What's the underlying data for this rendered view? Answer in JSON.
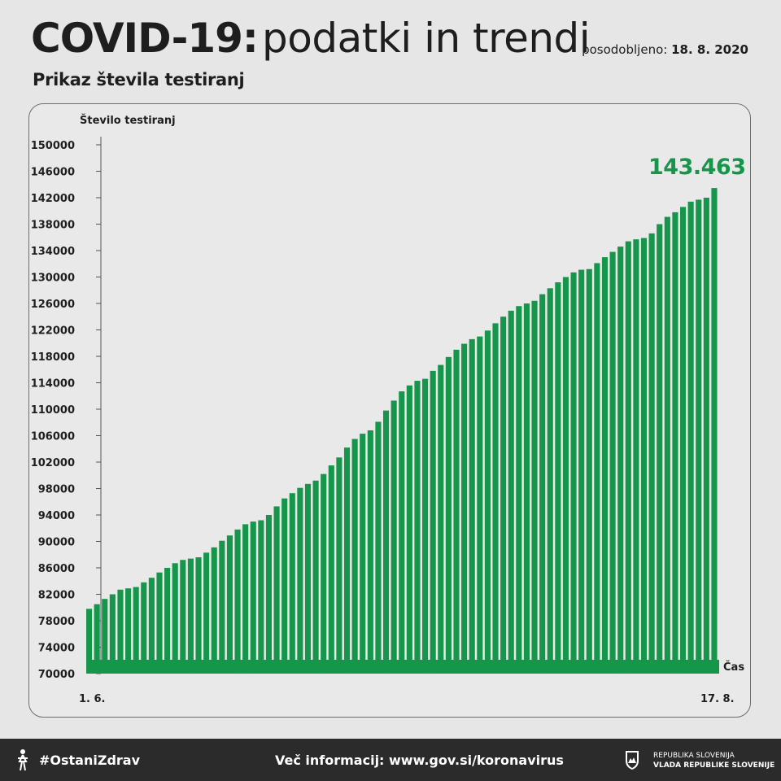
{
  "header": {
    "title_bold": "COVID-19:",
    "title_light": "podatki in trendi",
    "updated_label": "posodobljeno:",
    "updated_date": "18. 8. 2020",
    "subtitle": "Prikaz števila testiranj"
  },
  "chart_data": {
    "type": "bar",
    "ylabel": "Število testiranj",
    "xlabel": "Čas",
    "ylim": [
      70000,
      150000
    ],
    "yticks": [
      70000,
      74000,
      78000,
      82000,
      86000,
      90000,
      94000,
      98000,
      102000,
      106000,
      110000,
      114000,
      118000,
      122000,
      126000,
      130000,
      134000,
      138000,
      142000,
      146000,
      150000
    ],
    "x_start_label": "1. 6.",
    "x_end_label": "17. 8.",
    "highlight_label": "143.463",
    "bar_color": "#16964a",
    "values": [
      79800,
      80500,
      81300,
      82000,
      82700,
      82900,
      83100,
      83800,
      84500,
      85300,
      86000,
      86700,
      87200,
      87400,
      87600,
      88300,
      89100,
      90100,
      90900,
      91800,
      92600,
      93000,
      93200,
      94000,
      95300,
      96500,
      97300,
      98100,
      98700,
      99200,
      100200,
      101500,
      102700,
      104200,
      105500,
      106300,
      106800,
      108100,
      109800,
      111300,
      112700,
      113600,
      114300,
      114600,
      115800,
      116700,
      117900,
      119000,
      119900,
      120600,
      121000,
      121900,
      123000,
      124000,
      124900,
      125600,
      126000,
      126400,
      127400,
      128300,
      129200,
      130000,
      130700,
      131100,
      131200,
      132100,
      133000,
      133800,
      134600,
      135400,
      135700,
      135900,
      136600,
      138000,
      139100,
      139800,
      140600,
      141400,
      141700,
      142000,
      143463
    ]
  },
  "footer": {
    "hashtag": "#OstaniZdrav",
    "info": "Več informacij: www.gov.si/koronavirus",
    "gov_line1": "REPUBLIKA SLOVENIJA",
    "gov_line2": "VLADA REPUBLIKE SLOVENIJE"
  }
}
